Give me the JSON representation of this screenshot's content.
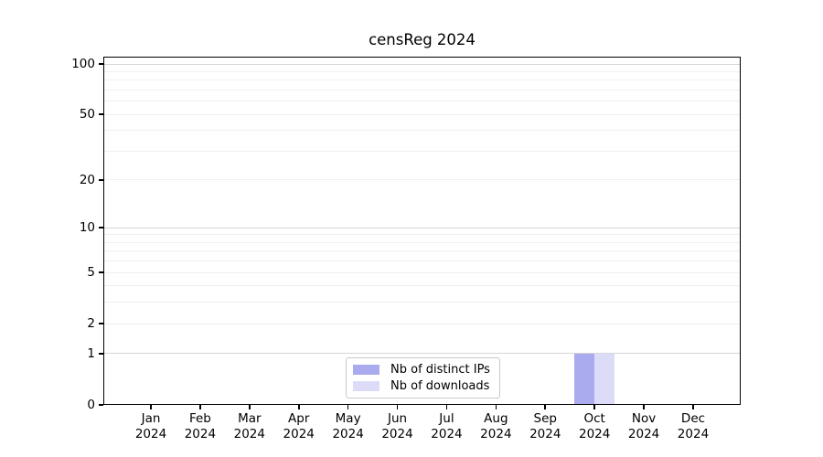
{
  "chart_data": {
    "type": "bar",
    "title": "censReg 2024",
    "categories": [
      {
        "month": "Jan",
        "year": "2024"
      },
      {
        "month": "Feb",
        "year": "2024"
      },
      {
        "month": "Mar",
        "year": "2024"
      },
      {
        "month": "Apr",
        "year": "2024"
      },
      {
        "month": "May",
        "year": "2024"
      },
      {
        "month": "Jun",
        "year": "2024"
      },
      {
        "month": "Jul",
        "year": "2024"
      },
      {
        "month": "Aug",
        "year": "2024"
      },
      {
        "month": "Sep",
        "year": "2024"
      },
      {
        "month": "Oct",
        "year": "2024"
      },
      {
        "month": "Nov",
        "year": "2024"
      },
      {
        "month": "Dec",
        "year": "2024"
      }
    ],
    "series": [
      {
        "name": "Nb of distinct IPs",
        "color": "#aaaaee",
        "values": [
          0,
          0,
          0,
          0,
          0,
          0,
          0,
          0,
          0,
          1,
          0,
          0
        ]
      },
      {
        "name": "Nb of downloads",
        "color": "#dcdcf8",
        "values": [
          0,
          0,
          0,
          0,
          0,
          0,
          0,
          0,
          0,
          1,
          0,
          0
        ]
      }
    ],
    "y_axis": {
      "scale": "log1p",
      "tick_labels": [
        "0",
        "1",
        "2",
        "5",
        "10",
        "20",
        "50",
        "100"
      ],
      "tick_values": [
        0,
        1,
        2,
        5,
        10,
        20,
        50,
        100
      ],
      "range_max": 110,
      "major_grid_values": [
        1,
        10,
        100
      ],
      "minor_grid_values": [
        2,
        3,
        4,
        5,
        6,
        7,
        8,
        9,
        20,
        30,
        40,
        50,
        60,
        70,
        80,
        90
      ]
    },
    "legend": {
      "position": "lower center"
    },
    "colors": {
      "background": "#ffffff",
      "axis": "#000000",
      "grid_major": "#d6d6d6",
      "grid_minor": "#f0f0f0",
      "legend_border": "#c9c9c9"
    }
  }
}
